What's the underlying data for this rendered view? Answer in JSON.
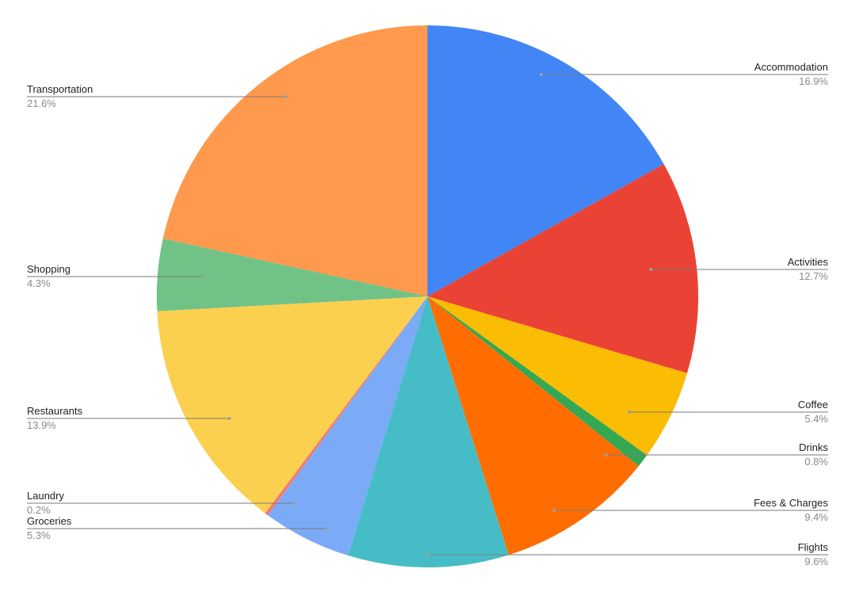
{
  "chart_data": {
    "type": "pie",
    "title": "",
    "legend": "none",
    "start_angle_deg": 0,
    "direction": "clockwise",
    "slices": [
      {
        "label": "Accommodation",
        "value": 16.9,
        "display": "16.9%",
        "color": "#4285F4"
      },
      {
        "label": "Activities",
        "value": 12.7,
        "display": "12.7%",
        "color": "#EA4335"
      },
      {
        "label": "Coffee",
        "value": 5.4,
        "display": "5.4%",
        "color": "#FBBC04"
      },
      {
        "label": "Drinks",
        "value": 0.8,
        "display": "0.8%",
        "color": "#34A853"
      },
      {
        "label": "Fees & Charges",
        "value": 9.4,
        "display": "9.4%",
        "color": "#FF6D01"
      },
      {
        "label": "Flights",
        "value": 9.6,
        "display": "9.6%",
        "color": "#46BDC6"
      },
      {
        "label": "Groceries",
        "value": 5.3,
        "display": "5.3%",
        "color": "#7BAAF7"
      },
      {
        "label": "Laundry",
        "value": 0.2,
        "display": "0.2%",
        "color": "#F07B72"
      },
      {
        "label": "Restaurants",
        "value": 13.9,
        "display": "13.9%",
        "color": "#FCD04F"
      },
      {
        "label": "Shopping",
        "value": 4.3,
        "display": "4.3%",
        "color": "#71C287"
      },
      {
        "label": "Transportation",
        "value": 21.6,
        "display": "21.6%",
        "color": "#FF994D"
      }
    ]
  }
}
